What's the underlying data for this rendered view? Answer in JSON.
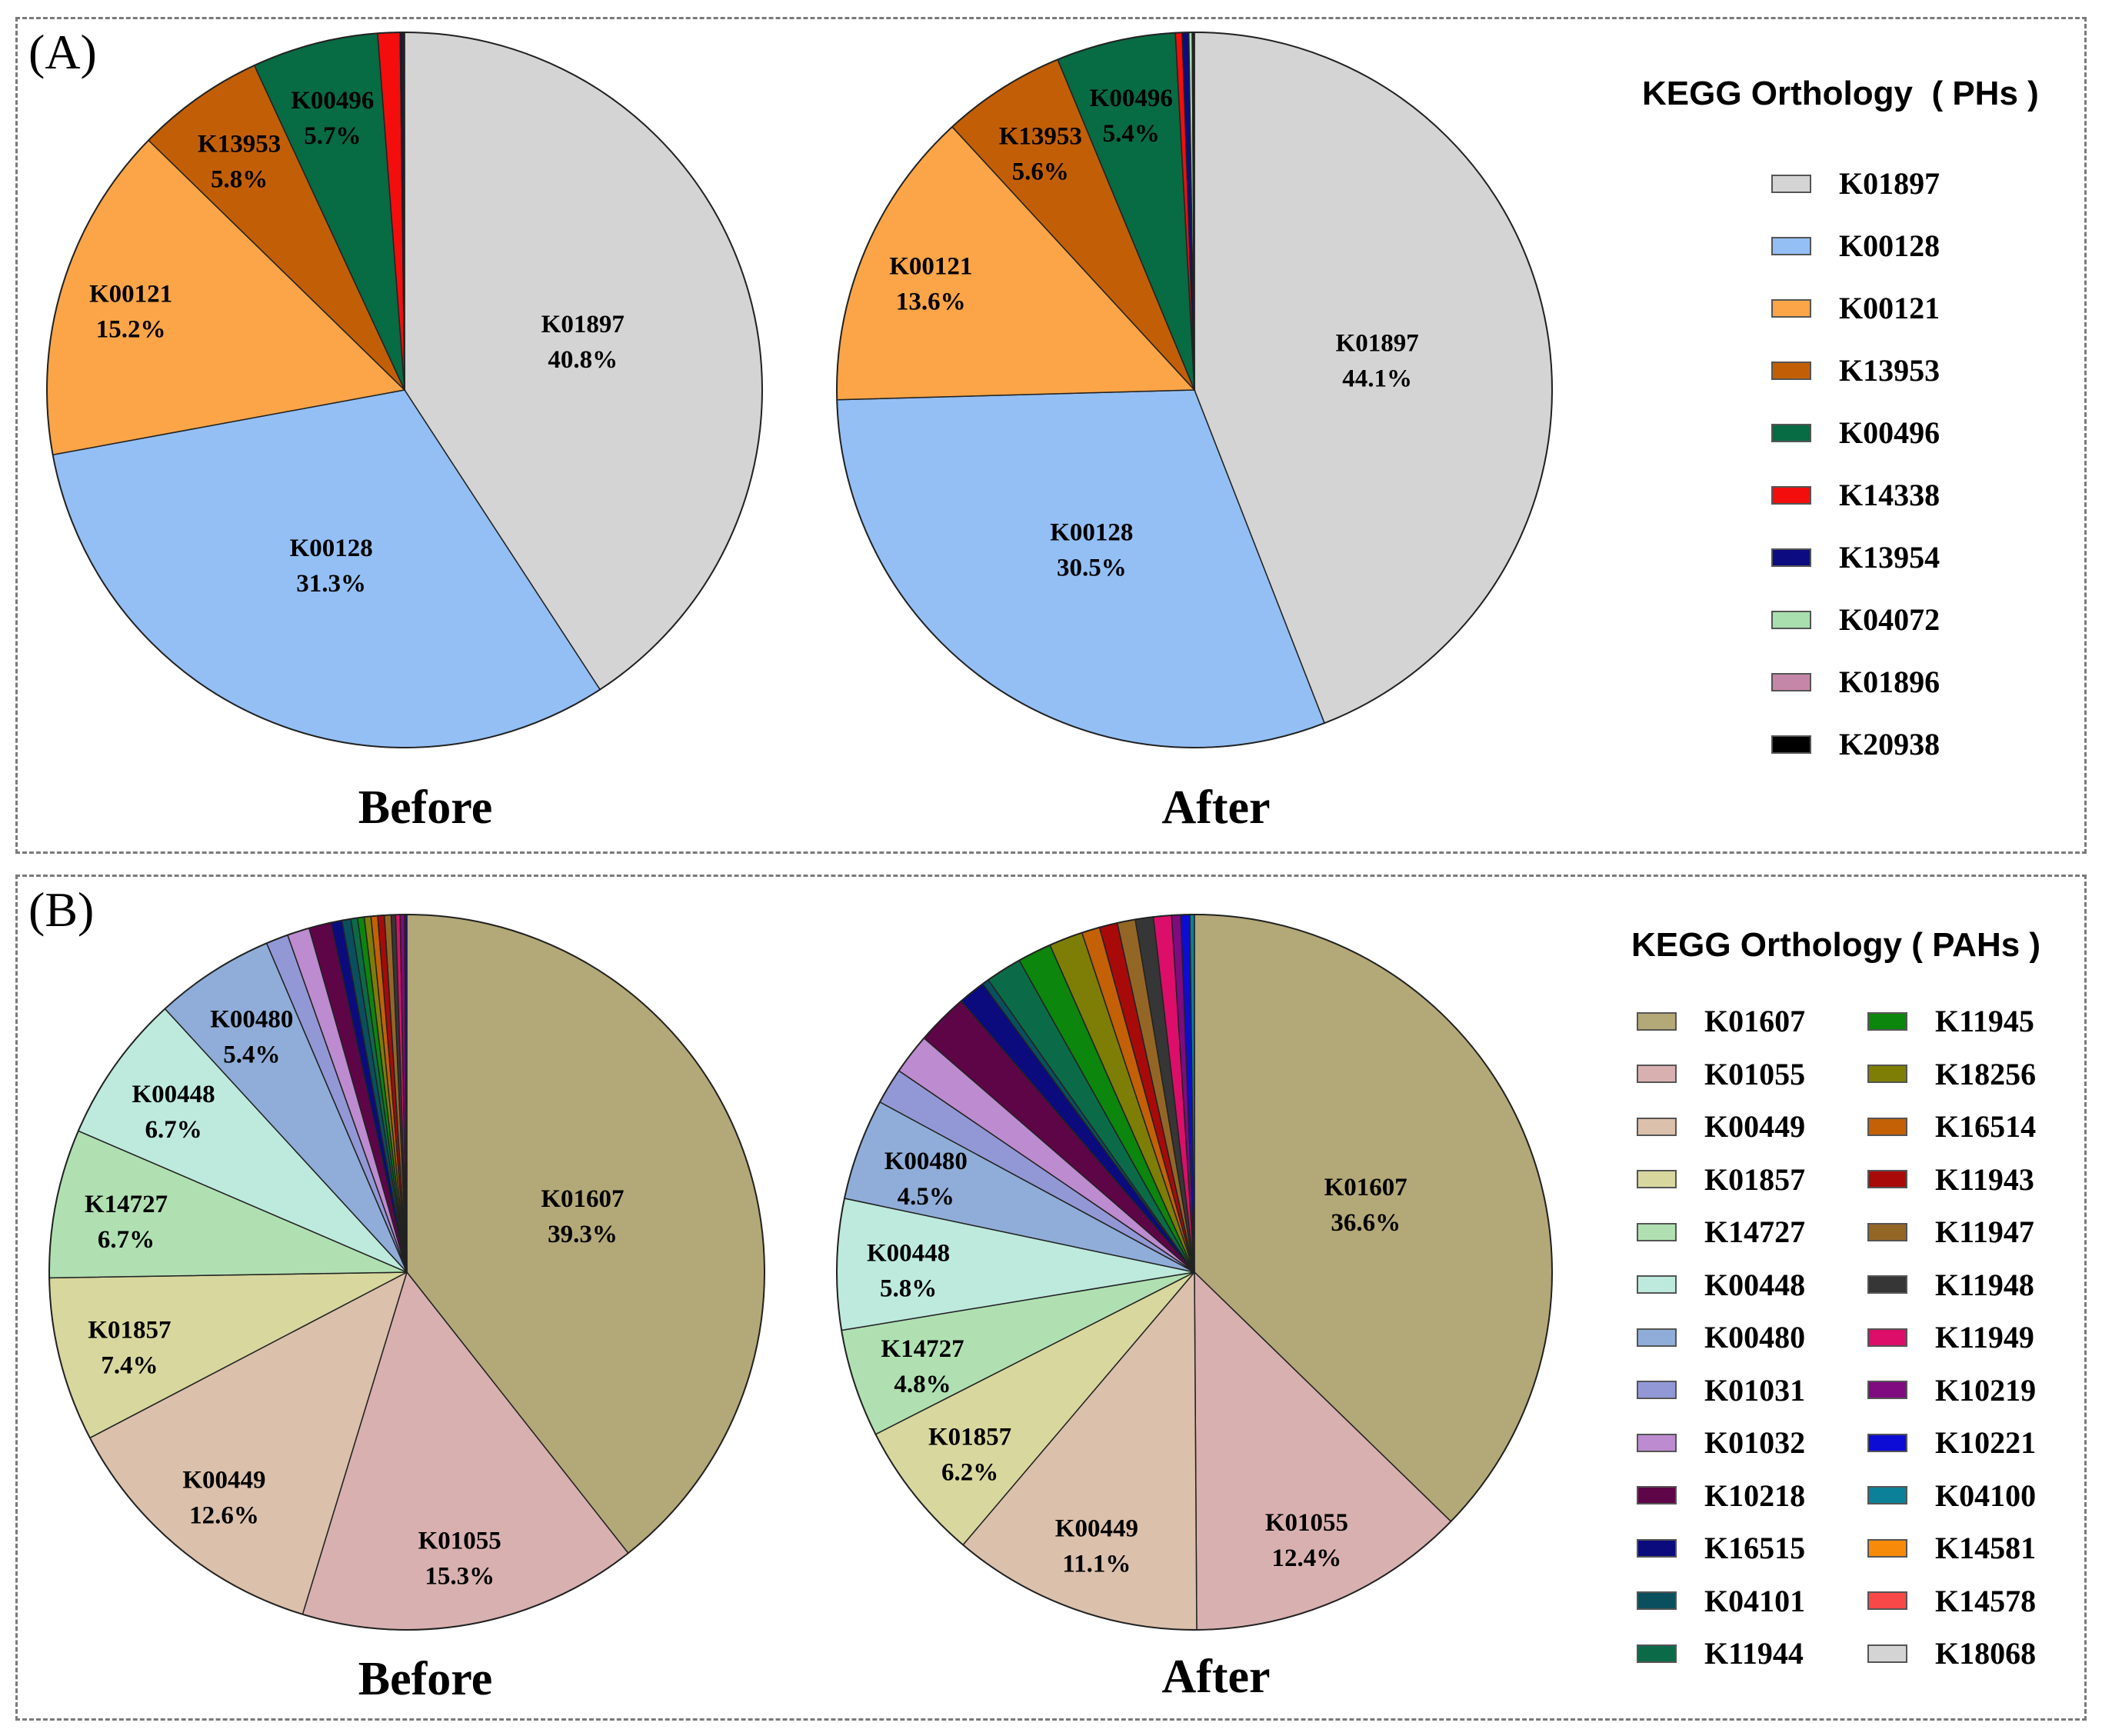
{
  "panels": [
    {
      "label": "(A)",
      "legend_title": "KEGG Orthology  ( PHs )",
      "pies": [
        {
          "title": "Before",
          "slices": [
            {
              "id": "K01897",
              "value": 40.8,
              "label": "40.8%"
            },
            {
              "id": "K00128",
              "value": 31.3,
              "label": "31.3%"
            },
            {
              "id": "K00121",
              "value": 15.2,
              "label": "15.2%"
            },
            {
              "id": "K13953",
              "value": 5.8,
              "label": "5.8%"
            },
            {
              "id": "K00496",
              "value": 5.7,
              "label": "5.7%"
            },
            {
              "id": "K14338",
              "value": 1.0
            },
            {
              "id": "K13954",
              "value": 0.1
            },
            {
              "id": "K04072",
              "value": 0.05
            },
            {
              "id": "K01896",
              "value": 0.05
            }
          ]
        },
        {
          "title": "After",
          "slices": [
            {
              "id": "K01897",
              "value": 44.1,
              "label": "44.1%"
            },
            {
              "id": "K00128",
              "value": 30.5,
              "label": "30.5%"
            },
            {
              "id": "K00121",
              "value": 13.6,
              "label": "13.6%"
            },
            {
              "id": "K13953",
              "value": 5.6,
              "label": "5.6%"
            },
            {
              "id": "K00496",
              "value": 5.4,
              "label": "5.4%"
            },
            {
              "id": "K14338",
              "value": 0.3
            },
            {
              "id": "K13954",
              "value": 0.3
            },
            {
              "id": "K04072",
              "value": 0.15
            },
            {
              "id": "K01896",
              "value": 0.05
            },
            {
              "id": "K20938",
              "value": 0.05
            }
          ]
        }
      ],
      "legend": [
        {
          "id": "K01897",
          "color": "#d4d4d4"
        },
        {
          "id": "K00128",
          "color": "#93bff5"
        },
        {
          "id": "K00121",
          "color": "#fba548"
        },
        {
          "id": "K13953",
          "color": "#c25f06"
        },
        {
          "id": "K00496",
          "color": "#076b44"
        },
        {
          "id": "K14338",
          "color": "#f40d0d"
        },
        {
          "id": "K13954",
          "color": "#0c0c80"
        },
        {
          "id": "K04072",
          "color": "#a9dfae"
        },
        {
          "id": "K01896",
          "color": "#c487a8"
        },
        {
          "id": "K20938",
          "color": "#000000"
        }
      ]
    },
    {
      "label": "(B)",
      "legend_title": "KEGG Orthology ( PAHs )",
      "pies": [
        {
          "title": "Before",
          "slices": [
            {
              "id": "K01607",
              "value": 39.3,
              "label": "39.3%"
            },
            {
              "id": "K01055",
              "value": 15.3,
              "label": "15.3%"
            },
            {
              "id": "K00449",
              "value": 12.6,
              "label": "12.6%"
            },
            {
              "id": "K01857",
              "value": 7.4,
              "label": "7.4%"
            },
            {
              "id": "K14727",
              "value": 6.7,
              "label": "6.7%"
            },
            {
              "id": "K00448",
              "value": 6.7,
              "label": "6.7%"
            },
            {
              "id": "K00480",
              "value": 5.4,
              "label": "5.4%"
            },
            {
              "id": "K01031",
              "value": 1.0
            },
            {
              "id": "K01032",
              "value": 1.0
            },
            {
              "id": "K10218",
              "value": 1.0
            },
            {
              "id": "K16515",
              "value": 0.5
            },
            {
              "id": "K04101",
              "value": 0.4
            },
            {
              "id": "K11944",
              "value": 0.3
            },
            {
              "id": "K11945",
              "value": 0.3
            },
            {
              "id": "K18256",
              "value": 0.3
            },
            {
              "id": "K16514",
              "value": 0.3
            },
            {
              "id": "K11943",
              "value": 0.3
            },
            {
              "id": "K11947",
              "value": 0.3
            },
            {
              "id": "K11948",
              "value": 0.2
            },
            {
              "id": "K11949",
              "value": 0.2
            },
            {
              "id": "K10219",
              "value": 0.2
            },
            {
              "id": "K10221",
              "value": 0.1
            }
          ]
        },
        {
          "title": "After",
          "slices": [
            {
              "id": "K01607",
              "value": 36.6,
              "label": "36.6%"
            },
            {
              "id": "K01055",
              "value": 12.4,
              "label": "12.4%"
            },
            {
              "id": "K00449",
              "value": 11.1,
              "label": "11.1%"
            },
            {
              "id": "K01857",
              "value": 6.2,
              "label": "6.2%"
            },
            {
              "id": "K14727",
              "value": 4.8,
              "label": "4.8%"
            },
            {
              "id": "K00448",
              "value": 5.8,
              "label": "5.8%"
            },
            {
              "id": "K00480",
              "value": 4.5,
              "label": "4.5%"
            },
            {
              "id": "K01031",
              "value": 1.6
            },
            {
              "id": "K01032",
              "value": 1.8
            },
            {
              "id": "K10218",
              "value": 2.3
            },
            {
              "id": "K16515",
              "value": 1.2
            },
            {
              "id": "K04101",
              "value": 0.3
            },
            {
              "id": "K11944",
              "value": 1.6
            },
            {
              "id": "K11945",
              "value": 1.5
            },
            {
              "id": "K18256",
              "value": 1.5
            },
            {
              "id": "K16514",
              "value": 0.8
            },
            {
              "id": "K11943",
              "value": 0.8
            },
            {
              "id": "K11947",
              "value": 0.8
            },
            {
              "id": "K11948",
              "value": 0.8
            },
            {
              "id": "K11949",
              "value": 0.8
            },
            {
              "id": "K10219",
              "value": 0.4
            },
            {
              "id": "K10221",
              "value": 0.4
            },
            {
              "id": "K04100",
              "value": 0.2
            }
          ]
        }
      ],
      "legend": [
        {
          "id": "K01607",
          "color": "#b3a877"
        },
        {
          "id": "K01055",
          "color": "#d8b0b0"
        },
        {
          "id": "K00449",
          "color": "#dbc0ab"
        },
        {
          "id": "K01857",
          "color": "#d8d79e"
        },
        {
          "id": "K14727",
          "color": "#b0e0b2"
        },
        {
          "id": "K00448",
          "color": "#bdeadd"
        },
        {
          "id": "K00480",
          "color": "#8fadd8"
        },
        {
          "id": "K01031",
          "color": "#9298d6"
        },
        {
          "id": "K01032",
          "color": "#bd8bcf"
        },
        {
          "id": "K10218",
          "color": "#5e0548"
        },
        {
          "id": "K16515",
          "color": "#0b0b7e"
        },
        {
          "id": "K04101",
          "color": "#0a4f5e"
        },
        {
          "id": "K11944",
          "color": "#0b6b48"
        },
        {
          "id": "K11945",
          "color": "#0c860c"
        },
        {
          "id": "K18256",
          "color": "#7e7e06"
        },
        {
          "id": "K16514",
          "color": "#c46006"
        },
        {
          "id": "K11943",
          "color": "#a80a0a"
        },
        {
          "id": "K11947",
          "color": "#946626"
        },
        {
          "id": "K11948",
          "color": "#363636"
        },
        {
          "id": "K11949",
          "color": "#dc0e6a"
        },
        {
          "id": "K10219",
          "color": "#800a80"
        },
        {
          "id": "K10221",
          "color": "#0c0cd4"
        },
        {
          "id": "K04100",
          "color": "#0c8096"
        },
        {
          "id": "K14581",
          "color": "#f88a0a"
        },
        {
          "id": "K14578",
          "color": "#f84848"
        },
        {
          "id": "K18068",
          "color": "#d4d4d4"
        }
      ]
    }
  ]
}
